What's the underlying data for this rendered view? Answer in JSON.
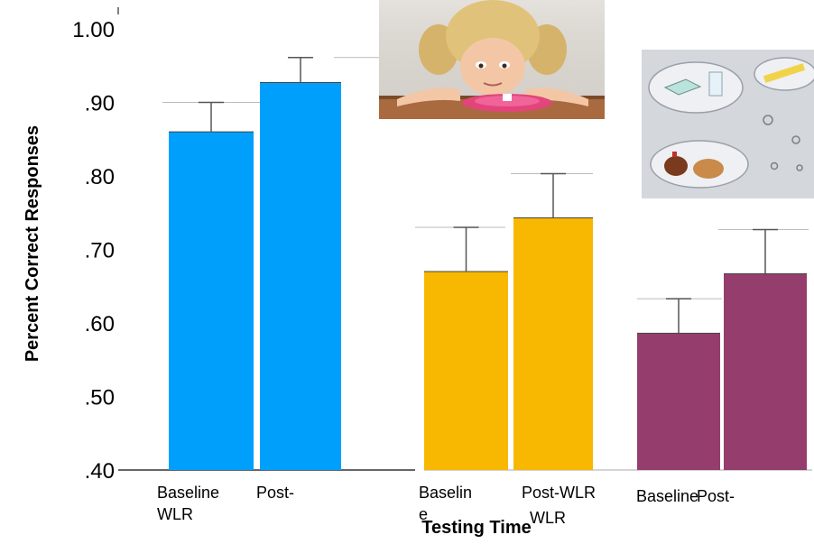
{
  "chart_data": {
    "type": "bar",
    "ylabel": "Percent Correct Responses",
    "xlabel": "Testing Time",
    "ylim": [
      0.4,
      1.0
    ],
    "ytick_labels": [
      ".40",
      ".50",
      ".60",
      ".70",
      ".80",
      ".90",
      "1.00"
    ],
    "ytick_values": [
      0.4,
      0.5,
      0.6,
      0.7,
      0.8,
      0.9,
      1.0
    ],
    "grid": false,
    "bar_labels": [
      "Baseline",
      "Post-WLR",
      "Baselin e",
      "Post-WLR WLR",
      "Baseline",
      "Post-"
    ],
    "groups": [
      {
        "color": "#009ffc",
        "bars": [
          {
            "value": 0.86,
            "err_high": 0.9
          },
          {
            "value": 0.927,
            "err_high": 0.961
          }
        ]
      },
      {
        "color": "#f8b700",
        "bars": [
          {
            "value": 0.67,
            "err_high": 0.73
          },
          {
            "value": 0.743,
            "err_high": 0.803
          }
        ]
      },
      {
        "color": "#953d6d",
        "bars": [
          {
            "value": 0.586,
            "err_high": 0.633
          },
          {
            "value": 0.667,
            "err_high": 0.727
          }
        ]
      }
    ]
  },
  "pictures": {
    "girl_photo": "girl-with-sugar-cube-photo",
    "thought_bubbles": "thought-bubbles-clipart"
  }
}
